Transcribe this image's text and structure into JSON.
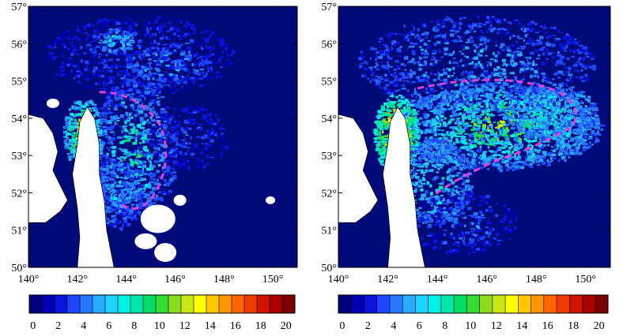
{
  "panels": [
    {
      "id": "left",
      "lat_ticks": [
        "50°",
        "51°",
        "52°",
        "53°",
        "54°",
        "55°",
        "56°",
        "57°"
      ],
      "lon_ticks": [
        "140°",
        "142°",
        "144°",
        "146°",
        "148°",
        "150°"
      ],
      "colorbar_ticks": [
        "0",
        "2",
        "4",
        "6",
        "8",
        "10",
        "12",
        "14",
        "16",
        "18",
        "20"
      ]
    },
    {
      "id": "right",
      "lat_ticks": [
        "50°",
        "51°",
        "52°",
        "53°",
        "54°",
        "55°",
        "56°",
        "57°"
      ],
      "lon_ticks": [
        "140°",
        "142°",
        "144°",
        "146°",
        "148°",
        "150°"
      ],
      "colorbar_ticks": [
        "0",
        "2",
        "4",
        "6",
        "8",
        "10",
        "12",
        "14",
        "16",
        "18",
        "20"
      ]
    }
  ],
  "colorbar_colors": [
    "#00007a",
    "#0000b4",
    "#0a14dc",
    "#1e46ff",
    "#2878ff",
    "#28aaff",
    "#1ed2ff",
    "#00f0e6",
    "#00e6aa",
    "#00dc64",
    "#32dc32",
    "#8cdc1e",
    "#c8e614",
    "#ffff00",
    "#ffc800",
    "#ff9600",
    "#ff6400",
    "#f03c00",
    "#d21400",
    "#aa0000",
    "#7a0000"
  ],
  "colors": {
    "ocean": "#000a78",
    "land": "#ffffff",
    "contour": "#e63cdc"
  }
}
